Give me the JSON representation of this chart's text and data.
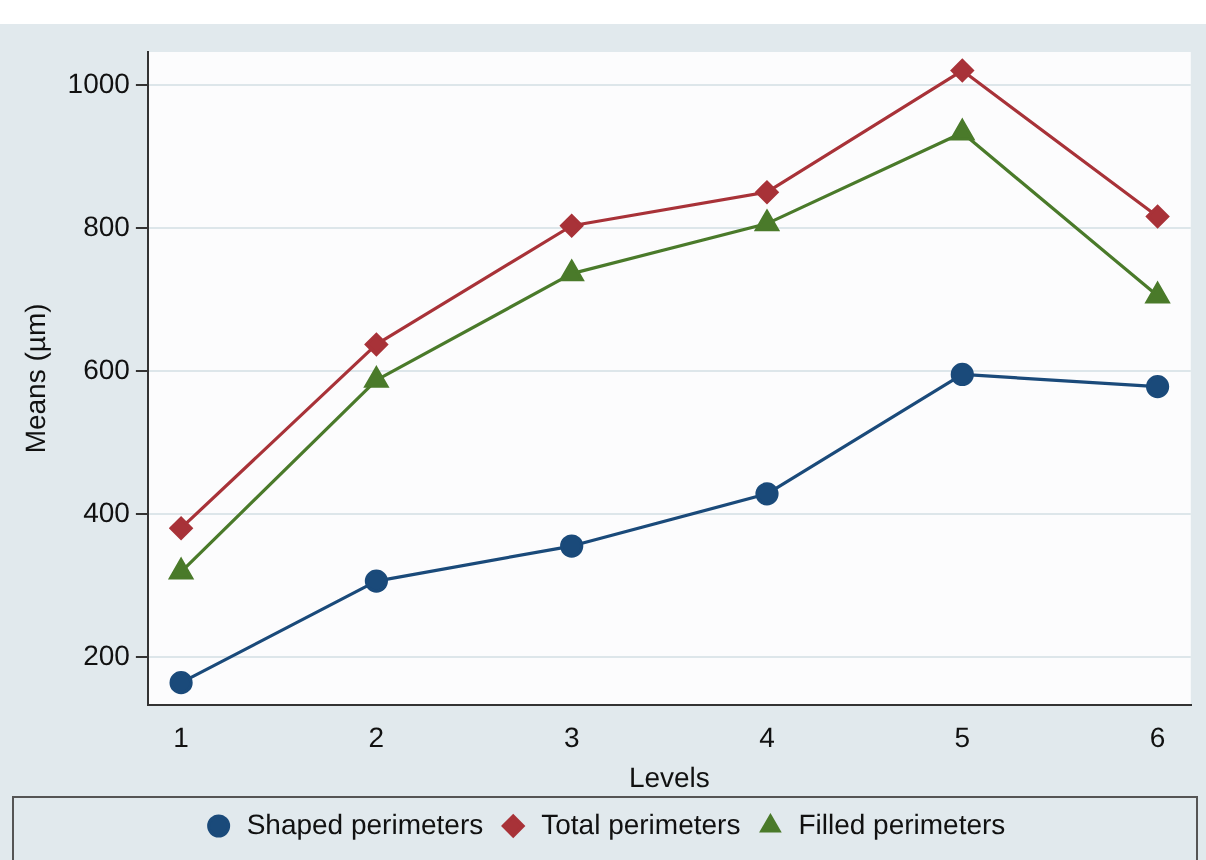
{
  "chart_data": {
    "type": "line",
    "xlabel": "Levels",
    "ylabel": "Means (µm)",
    "x": [
      1,
      2,
      3,
      4,
      5,
      6
    ],
    "series": [
      {
        "name": "Shaped perimeters",
        "color": "#1a4a7a",
        "marker": "circle",
        "values": [
          164,
          306,
          355,
          428,
          595,
          578
        ]
      },
      {
        "name": "Total perimeters",
        "color": "#a83238",
        "marker": "diamond",
        "values": [
          380,
          637,
          803,
          850,
          1020,
          816
        ]
      },
      {
        "name": "Filled perimeters",
        "color": "#4a7a2a",
        "marker": "triangle",
        "values": [
          319,
          587,
          736,
          806,
          933,
          705
        ]
      }
    ],
    "xlim": [
      0.83,
      6.17
    ],
    "xticks": [
      1,
      2,
      3,
      4,
      5,
      6
    ],
    "ylim": [
      133,
      1046
    ],
    "yticks": [
      200,
      400,
      600,
      800,
      1000
    ],
    "grid": "y",
    "legend": "bottom",
    "line_style": "solid"
  }
}
